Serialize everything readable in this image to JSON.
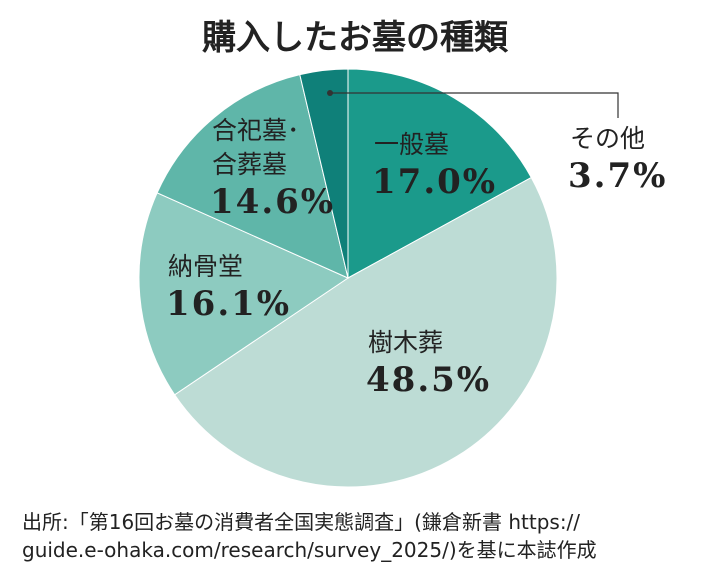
{
  "chart_data": {
    "type": "pie",
    "title": "購入したお墓の種類",
    "categories": [
      "一般墓",
      "樹木葬",
      "納骨堂",
      "合祀墓･合葬墓",
      "その他"
    ],
    "values": [
      17.0,
      48.5,
      16.1,
      14.6,
      3.7
    ],
    "value_labels": [
      "17.0%",
      "48.5%",
      "16.1%",
      "14.6%",
      "3.7%"
    ],
    "colors": [
      "#1b9a8b",
      "#bddcd5",
      "#8dcbc0",
      "#5fb6a9",
      "#0f8079"
    ],
    "source": [
      "出所:「第16回お墓の消費者全国実態調査」(鎌倉新書 https://",
      "guide.e-ohaka.com/research/survey_2025/)を基に本誌作成"
    ]
  }
}
